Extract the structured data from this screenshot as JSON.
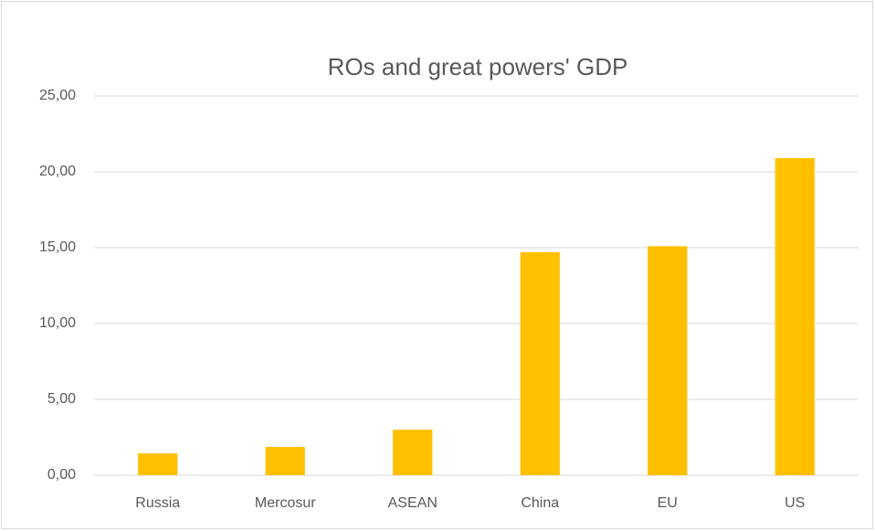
{
  "chart_data": {
    "type": "bar",
    "title": "ROs and great powers' GDP",
    "categories": [
      "Russia",
      "Mercosur",
      "ASEAN",
      "China",
      "EU",
      "US"
    ],
    "values": [
      1.45,
      1.87,
      3.0,
      14.7,
      15.1,
      20.9
    ],
    "color": "#ffc000",
    "ylim": [
      0,
      25
    ],
    "yticks": [
      {
        "value": 0,
        "label": "0,00"
      },
      {
        "value": 5,
        "label": "5,00"
      },
      {
        "value": 10,
        "label": "10,00"
      },
      {
        "value": 15,
        "label": "15,00"
      },
      {
        "value": 20,
        "label": "20,00"
      },
      {
        "value": 25,
        "label": "25,00"
      }
    ],
    "grid": true
  }
}
